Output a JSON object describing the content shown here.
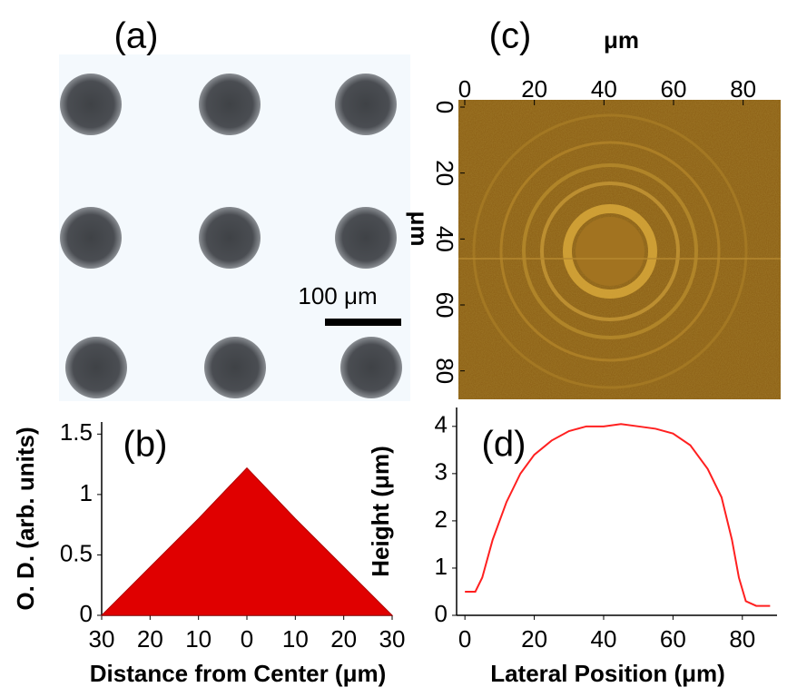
{
  "chart_data": [
    {
      "type": "image",
      "label": "(a)",
      "scale_bar": "100 μm"
    },
    {
      "type": "area",
      "label": "(b)",
      "x": [
        -30,
        -20,
        -10,
        0,
        10,
        20,
        30
      ],
      "values": [
        0,
        0.4,
        0.8,
        1.22,
        0.8,
        0.4,
        0
      ],
      "color": "#e00000",
      "xlim": [
        -30,
        30
      ],
      "xticks": [
        {
          "value": -30,
          "label": "30"
        },
        {
          "value": -20,
          "label": "20"
        },
        {
          "value": -10,
          "label": "10"
        },
        0,
        10,
        20,
        30
      ],
      "ylim": [
        0,
        1.6
      ],
      "yticks": [
        0,
        0.5,
        1,
        1.5
      ],
      "x_label": "Distance from Center (μm)",
      "y_label": "O. D. (arb. units)"
    },
    {
      "type": "heatmap",
      "label": "(c)",
      "xlim": [
        0,
        90
      ],
      "xticks": [
        0,
        20,
        40,
        60,
        80
      ],
      "ylim": [
        0,
        90
      ],
      "yticks": [
        0,
        20,
        40,
        60,
        80
      ],
      "x_label": "μm",
      "y_label": "μm"
    },
    {
      "type": "line",
      "label": "(d)",
      "x": [
        0,
        3,
        5,
        8,
        12,
        16,
        20,
        25,
        30,
        35,
        40,
        45,
        50,
        55,
        60,
        65,
        70,
        74,
        77,
        79,
        81,
        84,
        88
      ],
      "values": [
        0.5,
        0.5,
        0.8,
        1.6,
        2.4,
        3.0,
        3.4,
        3.7,
        3.9,
        4.0,
        4.0,
        4.05,
        4.0,
        3.95,
        3.85,
        3.6,
        3.1,
        2.5,
        1.6,
        0.8,
        0.3,
        0.2,
        0.2
      ],
      "color": "#ff2020",
      "xlim": [
        -2.4,
        90
      ],
      "xticks": [
        0,
        20,
        40,
        60,
        80
      ],
      "ylim": [
        0,
        4.4
      ],
      "yticks": [
        0,
        1,
        2,
        3,
        4
      ],
      "x_label": "Lateral Position (μm)",
      "y_label": "Height (μm)"
    }
  ]
}
